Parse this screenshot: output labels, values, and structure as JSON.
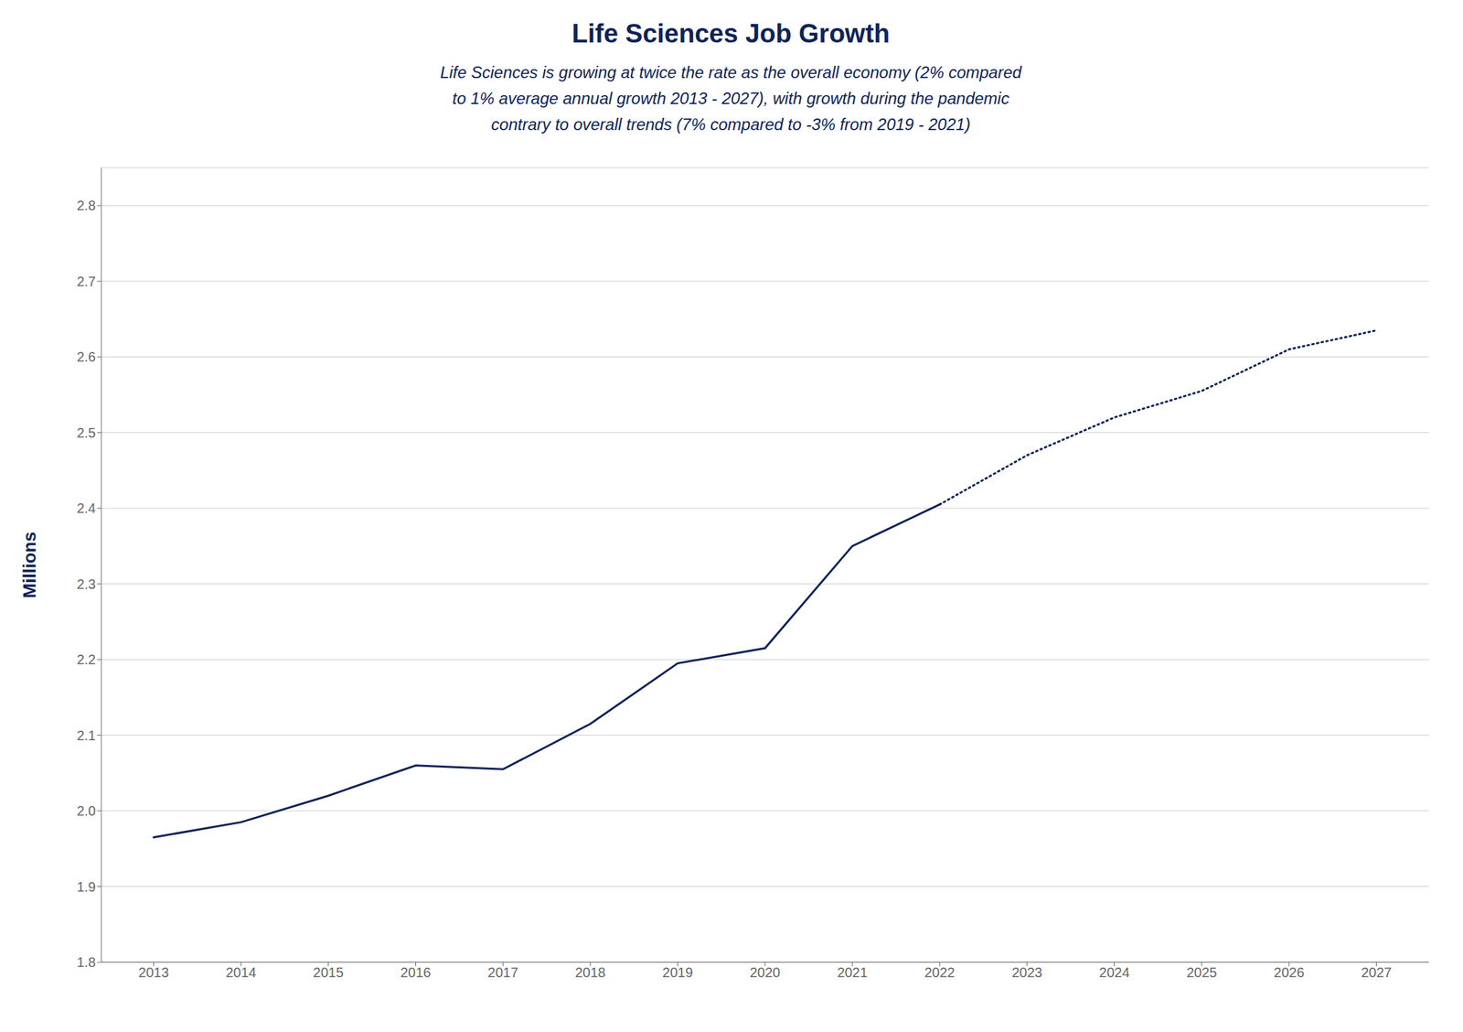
{
  "chart_data": {
    "type": "line",
    "title": "Life Sciences Job Growth",
    "subtitle": [
      "Life Sciences is growing at twice the rate as the overall economy (2% compared",
      "to 1% average annual growth 2013 - 2027), with growth during the pandemic",
      "contrary to overall trends (7% compared to -3% from 2019 - 2021)"
    ],
    "y_label": "Millions",
    "color": "#0d2359",
    "x": [
      2013,
      2014,
      2015,
      2016,
      2017,
      2018,
      2019,
      2020,
      2021,
      2022,
      2023,
      2024,
      2025,
      2026,
      2027
    ],
    "series": [
      {
        "line_style": "solid",
        "values": [
          1.965,
          1.985,
          2.02,
          2.06,
          2.055,
          2.115,
          2.195,
          2.215,
          2.35,
          2.405,
          null,
          null,
          null,
          null,
          null
        ]
      },
      {
        "line_style": "dotted",
        "values": [
          null,
          null,
          null,
          null,
          null,
          null,
          null,
          null,
          null,
          2.405,
          2.47,
          2.52,
          2.555,
          2.61,
          2.635
        ]
      }
    ],
    "xlim": [
      2012.4,
      2027.6
    ],
    "xticks": [
      2013,
      2014,
      2015,
      2016,
      2017,
      2018,
      2019,
      2020,
      2021,
      2022,
      2023,
      2024,
      2025,
      2026,
      2027
    ],
    "ylim": [
      1.8,
      2.85
    ],
    "yticks": [
      1.8,
      1.9,
      {
        "value": 2,
        "label": "2.0"
      },
      2.1,
      2.2,
      2.3,
      2.4,
      2.5,
      2.6,
      2.7,
      2.8
    ],
    "grid": true
  }
}
